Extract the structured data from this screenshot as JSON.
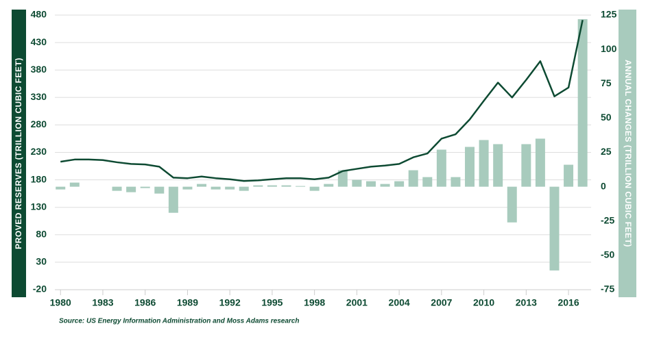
{
  "chart_data": {
    "type": "bar-line",
    "y_label": "PROVED RESERVES (TRILLION CUBIC FEET)",
    "y2_label": "ANNUAL CHANGES (TRILLION CUBIC FEET)",
    "source": "Source: US Energy Information Administration and Moss Adams research",
    "x": [
      1980,
      1981,
      1982,
      1983,
      1984,
      1985,
      1986,
      1987,
      1988,
      1989,
      1990,
      1991,
      1992,
      1993,
      1994,
      1995,
      1996,
      1997,
      1998,
      1999,
      2000,
      2001,
      2002,
      2003,
      2004,
      2005,
      2006,
      2007,
      2008,
      2009,
      2010,
      2011,
      2012,
      2013,
      2014,
      2015,
      2016,
      2017
    ],
    "xlim": [
      1979.6,
      2017.6
    ],
    "xticks": [
      1980,
      1983,
      1986,
      1989,
      1992,
      1995,
      1998,
      2001,
      2004,
      2007,
      2010,
      2013,
      2016
    ],
    "ylim": [
      -20,
      480
    ],
    "yticks": [
      -20,
      30,
      80,
      130,
      180,
      230,
      280,
      330,
      380,
      430,
      480
    ],
    "y2lim": [
      -75,
      125
    ],
    "y2ticks": [
      -75,
      -50,
      -25,
      0,
      25,
      50,
      75,
      100,
      125
    ],
    "grid": true,
    "series": [
      {
        "type": "bar",
        "axis": "y2",
        "color": "#a8cbbd",
        "values": [
          -2,
          3,
          0,
          0,
          -3,
          -4,
          -1,
          -5,
          -19,
          -2,
          2,
          -2,
          -2,
          -3,
          1,
          1,
          1,
          0.5,
          -3,
          2,
          12,
          5,
          4,
          2,
          4,
          12,
          7,
          27,
          7,
          29,
          34,
          31,
          -26,
          31,
          35,
          -61,
          16,
          122
        ]
      },
      {
        "type": "line",
        "color": "#0d4a32",
        "values": [
          213,
          217,
          217,
          216,
          212,
          209,
          208,
          204,
          184,
          183,
          186,
          183,
          181,
          178,
          179,
          181,
          183,
          183,
          181,
          184,
          196,
          200,
          204,
          206,
          209,
          221,
          228,
          255,
          263,
          290,
          324,
          357,
          330,
          362,
          396,
          332,
          348,
          471
        ]
      }
    ]
  }
}
